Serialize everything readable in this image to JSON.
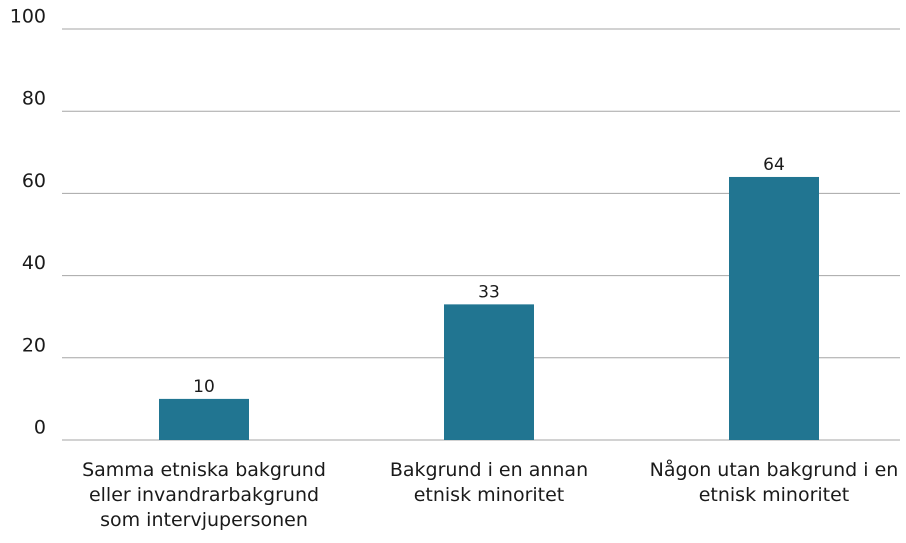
{
  "chart_data": {
    "type": "bar",
    "categories": [
      "Samma etniska bakgrund eller invandrarbakgrund som intervjupersonen",
      "Bakgrund i en annan etnisk minoritet",
      "Någon utan bakgrund i en etnisk minoritet"
    ],
    "values": [
      10,
      33,
      64
    ],
    "color": "#217591",
    "ylim": [
      0,
      100
    ],
    "yticks": [
      0,
      20,
      40,
      60,
      80,
      100
    ],
    "grid": true,
    "data_labels": true
  }
}
